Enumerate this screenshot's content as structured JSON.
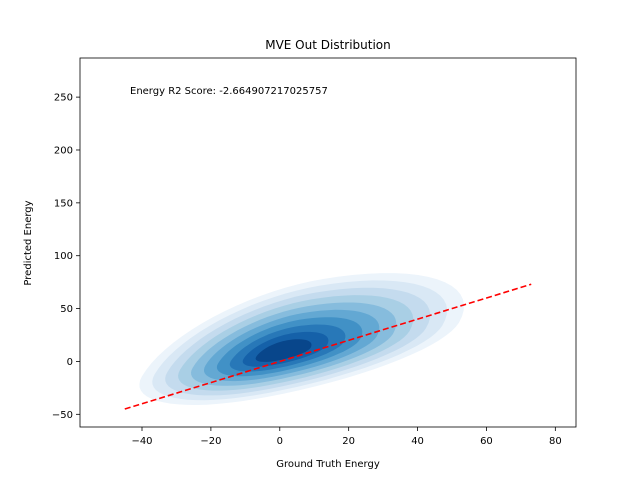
{
  "chart_data": {
    "type": "kde-contour",
    "title": "MVE Out Distribution",
    "xlabel": "Ground Truth Energy",
    "ylabel": "Predicted Energy",
    "annotation": "Energy R2 Score: -2.664907217025757",
    "xlim": [
      -58,
      86
    ],
    "ylim": [
      -62,
      287
    ],
    "xticks": [
      -40,
      -20,
      0,
      20,
      40,
      60,
      80
    ],
    "yticks": [
      -50,
      0,
      50,
      100,
      150,
      200,
      250
    ],
    "colormap": "Blues",
    "reference_line": {
      "style": "dashed",
      "color": "#ff0000",
      "points": [
        [
          -45,
          -45
        ],
        [
          73,
          73
        ]
      ]
    },
    "density": {
      "center": [
        0,
        8
      ],
      "levels": 10
    }
  }
}
